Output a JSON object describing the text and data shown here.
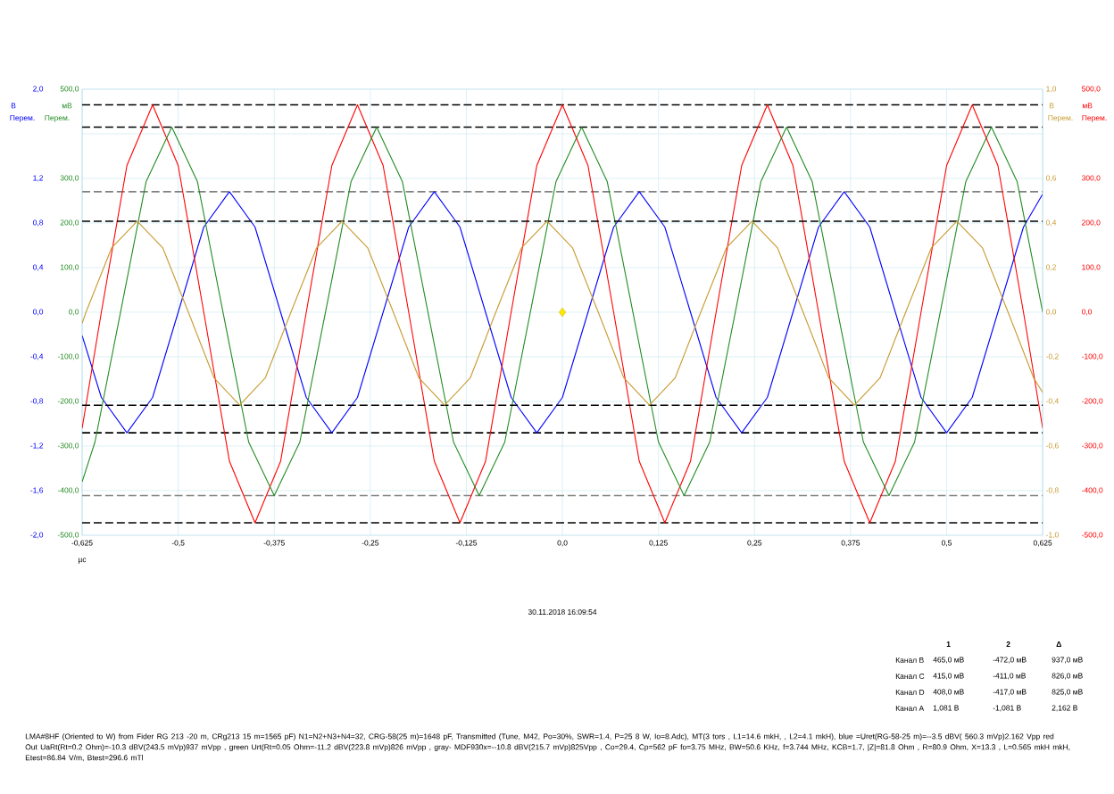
{
  "chart_data": {
    "type": "line",
    "xlabel": "µс",
    "ylabel": "В",
    "y2label": "мВ",
    "y3label": "В",
    "xlim": [
      -0.625,
      0.625
    ],
    "xticks": [
      {
        "value": -0.625,
        "label": "-0,625"
      },
      {
        "value": -0.5,
        "label": "-0,5"
      },
      {
        "value": -0.375,
        "label": "-0,375"
      },
      {
        "value": -0.25,
        "label": "-0,25"
      },
      {
        "value": -0.125,
        "label": "-0,125"
      },
      {
        "value": 0,
        "label": "0,0"
      },
      {
        "value": 0.125,
        "label": "0,125"
      },
      {
        "value": 0.25,
        "label": "0,25"
      },
      {
        "value": 0.375,
        "label": "0,375"
      },
      {
        "value": 0.5,
        "label": "0,5"
      },
      {
        "value": 0.625,
        "label": "0,625"
      }
    ],
    "ylim": [
      -2,
      2
    ],
    "yticks": [
      {
        "value": 2,
        "label": "2,0"
      },
      {
        "value": 1.6,
        "label": null
      },
      {
        "value": 1.2,
        "label": "1,2"
      },
      {
        "value": 0.8,
        "label": "0,8"
      },
      {
        "value": 0.4,
        "label": "0,4"
      },
      {
        "value": 0,
        "label": "0,0"
      },
      {
        "value": -0.4,
        "label": "-0,4"
      },
      {
        "value": -0.8,
        "label": "-0,8"
      },
      {
        "value": -1.2,
        "label": "-1,2"
      },
      {
        "value": -1.6,
        "label": "-1,6"
      },
      {
        "value": -2,
        "label": "-2,0"
      }
    ],
    "y2lim": [
      -500,
      500
    ],
    "y2ticks": [
      {
        "value": 500,
        "label": "500,0"
      },
      {
        "value": 400,
        "label": null
      },
      {
        "value": 300,
        "label": "300,0"
      },
      {
        "value": 200,
        "label": "200,0"
      },
      {
        "value": 100,
        "label": "100,0"
      },
      {
        "value": 0,
        "label": "0,0"
      },
      {
        "value": -100,
        "label": "-100,0"
      },
      {
        "value": -200,
        "label": "-200,0"
      },
      {
        "value": -300,
        "label": "-300,0"
      },
      {
        "value": -400,
        "label": "-400,0"
      },
      {
        "value": -500,
        "label": "-500,0"
      }
    ],
    "y3lim": [
      -1,
      1
    ],
    "y3ticks": [
      {
        "value": 1,
        "label": "1,0"
      },
      {
        "value": 0.8,
        "label": null
      },
      {
        "value": 0.6,
        "label": "0,6"
      },
      {
        "value": 0.4,
        "label": "0,4"
      },
      {
        "value": 0.2,
        "label": "0,2"
      },
      {
        "value": 0,
        "label": "0,0"
      },
      {
        "value": -0.2,
        "label": "-0,2"
      },
      {
        "value": -0.4,
        "label": "-0,4"
      },
      {
        "value": -0.6,
        "label": "-0,6"
      },
      {
        "value": -0.8,
        "label": "-0,8"
      },
      {
        "value": -1,
        "label": "-1,0"
      }
    ],
    "grid": true,
    "series": [
      {
        "color": "#c89a30",
        "axis": "y3",
        "x": [
          -0.625,
          -0.62,
          -0.5867,
          -0.5533,
          -0.52,
          -0.4867,
          -0.4533,
          -0.42,
          -0.3867,
          -0.3533,
          -0.32,
          -0.2867,
          -0.2533,
          -0.22,
          -0.1867,
          -0.1533,
          -0.12,
          -0.0867,
          -0.0533,
          -0.02,
          0.0133,
          0.0467,
          0.08,
          0.1133,
          0.1467,
          0.18,
          0.2133,
          0.2467,
          0.28,
          0.3133,
          0.3467,
          0.38,
          0.4133,
          0.4467,
          0.48,
          0.5133,
          0.5467,
          0.58,
          0.6133,
          0.625
        ],
        "values": [
          -0.05,
          0,
          0.288,
          0.408,
          0.288,
          0,
          -0.295,
          -0.417,
          -0.295,
          0,
          0.288,
          0.408,
          0.288,
          0,
          -0.295,
          -0.417,
          -0.295,
          0,
          0.288,
          0.408,
          0.288,
          0,
          -0.295,
          -0.417,
          -0.295,
          0,
          0.288,
          0.408,
          0.288,
          0,
          -0.295,
          -0.417,
          -0.295,
          0,
          0.288,
          0.408,
          0.288,
          0,
          -0.295,
          -0.36
        ]
      },
      {
        "color": "#0000ff",
        "x": [
          -0.625,
          -0.6,
          -0.5667,
          -0.5333,
          -0.5,
          -0.4667,
          -0.4333,
          -0.4,
          -0.3667,
          -0.3333,
          -0.3,
          -0.2667,
          -0.2333,
          -0.2,
          -0.1667,
          -0.1333,
          -0.1,
          -0.0667,
          -0.0333,
          0,
          0.0333,
          0.0667,
          0.1,
          0.1333,
          0.1667,
          0.2,
          0.2333,
          0.2667,
          0.3,
          0.3333,
          0.3667,
          0.4,
          0.4333,
          0.4667,
          0.5,
          0.5333,
          0.5667,
          0.6,
          0.625
        ],
        "values": [
          -0.21,
          -0.764,
          -1.081,
          -0.764,
          0,
          0.764,
          1.081,
          0.764,
          0,
          -0.764,
          -1.081,
          -0.764,
          0,
          0.764,
          1.081,
          0.764,
          0,
          -0.764,
          -1.081,
          -0.764,
          0,
          0.764,
          1.081,
          0.764,
          0,
          -0.764,
          -1.081,
          -0.764,
          0,
          0.764,
          1.081,
          0.764,
          0,
          -0.764,
          -1.081,
          -0.764,
          0,
          0.764,
          1.06
        ]
      },
      {
        "color": "#ff0000",
        "axis": "y2",
        "x": [
          -0.625,
          -0.6,
          -0.5667,
          -0.5333,
          -0.5,
          -0.4667,
          -0.4333,
          -0.4,
          -0.3667,
          -0.3333,
          -0.3,
          -0.2667,
          -0.2333,
          -0.2,
          -0.1667,
          -0.1333,
          -0.1,
          -0.0667,
          -0.0333,
          0,
          0.0333,
          0.0667,
          0.1,
          0.1333,
          0.1667,
          0.2,
          0.2333,
          0.2667,
          0.3,
          0.3333,
          0.3667,
          0.4,
          0.4333,
          0.4667,
          0.5,
          0.5333,
          0.5667,
          0.6,
          0.625
        ],
        "values": [
          -260,
          0,
          329,
          465,
          329,
          0,
          -334,
          -472,
          -334,
          0,
          329,
          465,
          329,
          0,
          -334,
          -472,
          -334,
          0,
          329,
          465,
          329,
          0,
          -334,
          -472,
          -334,
          0,
          329,
          465,
          329,
          0,
          -334,
          -472,
          -334,
          0,
          329,
          465,
          329,
          0,
          -260
        ]
      },
      {
        "color": "#228b22",
        "axis": "y2",
        "x": [
          -0.625,
          -0.6083,
          -0.575,
          -0.5417,
          -0.5083,
          -0.475,
          -0.4417,
          -0.4083,
          -0.375,
          -0.3417,
          -0.3083,
          -0.275,
          -0.2417,
          -0.2083,
          -0.175,
          -0.1417,
          -0.1083,
          -0.075,
          -0.0417,
          -0.0083,
          0.025,
          0.0583,
          0.0917,
          0.125,
          0.1583,
          0.1917,
          0.225,
          0.2583,
          0.2917,
          0.325,
          0.3583,
          0.3917,
          0.425,
          0.4583,
          0.4917,
          0.525,
          0.5583,
          0.5917,
          0.625
        ],
        "values": [
          -380,
          -291,
          0,
          293,
          415,
          293,
          0,
          -291,
          -411,
          -291,
          0,
          293,
          415,
          293,
          0,
          -291,
          -411,
          -291,
          0,
          293,
          415,
          293,
          0,
          -291,
          -411,
          -291,
          0,
          293,
          415,
          293,
          0,
          -291,
          -411,
          -291,
          0,
          293,
          415,
          293,
          0
        ]
      },
      {
        "type": "scatter",
        "marker": "diamond",
        "color": "#ffe600",
        "x": [
          0
        ],
        "values": [
          0
        ]
      }
    ],
    "ref_lines": [
      {
        "axis": "y2",
        "value": 465,
        "color": "#000000",
        "line_style": "dashed"
      },
      {
        "axis": "y2",
        "value": 415,
        "color": "#000000",
        "line_style": "dashed"
      },
      {
        "axis": "y",
        "value": 1.081,
        "color": "#808080",
        "line_style": "dashed"
      },
      {
        "axis": "y3",
        "value": 0.408,
        "color": "#000000",
        "line_style": "dashed"
      },
      {
        "axis": "y3",
        "value": -0.417,
        "color": "#000000",
        "line_style": "dashed"
      },
      {
        "axis": "y",
        "value": -1.081,
        "color": "#000000",
        "line_style": "dashed"
      },
      {
        "axis": "y2",
        "value": -411,
        "color": "#808080",
        "line_style": "dashed"
      },
      {
        "axis": "y2",
        "value": -472,
        "color": "#000000",
        "line_style": "dashed"
      }
    ],
    "annotations": [
      "Перем.",
      "Перем.",
      "Перем.",
      "Перем.",
      "30.11.2018 16:09:54",
      "1",
      "2",
      "Δ",
      "Канал В",
      "465,0 мВ",
      "-472,0 мВ",
      "937,0 мВ",
      "Канал С",
      "415,0 мВ",
      "-411,0 мВ",
      "826,0 мВ",
      "Канал D",
      "408,0 мВ",
      "-417,0 мВ",
      "825,0 мВ",
      "Канал А",
      "1,081 В",
      "-1,081 В",
      "2,162 В",
      "LMA#8HF (Oriented to W) from Fider RG 213 -20 m, CRg213 15 m=1565 pF) N1=N2+N3+N4=32, CRG-58(25 m)=1648 pF, Transmitted (Tune, M42, Po=30%, SWR=1.4, P=25 8 W, Io=8.Adc), MT(3 tors , L1=14.6 mkH, , L2=4.1 mkH), blue =Uret(RG-58-25 m)=--3.5 dBV( 560.3 mVp)2.162 Vpp red Out UaRt(Rt=0.2 Ohm)=-10.3 dBV(243.5 mVp)937 mVpp , green Urt(Rt=0.05 Ohm=-11.2 dBV(223.8 mVp)826 mVpp , gray- MDF930x=--10.8 dBV(215.7 mVp)825Vpp , Co=29.4, Cp=562 pF fo=3.75 MHz, BW=50.6 KHz, f=3.744 MHz, KCB=1.7, |Z|=81.8 Ohm , R=80.9 Ohm, X=13.3 , L=0.565 mkH mkH, Etest=86.84 V/m, Btest=296.6 mTl"
    ]
  }
}
